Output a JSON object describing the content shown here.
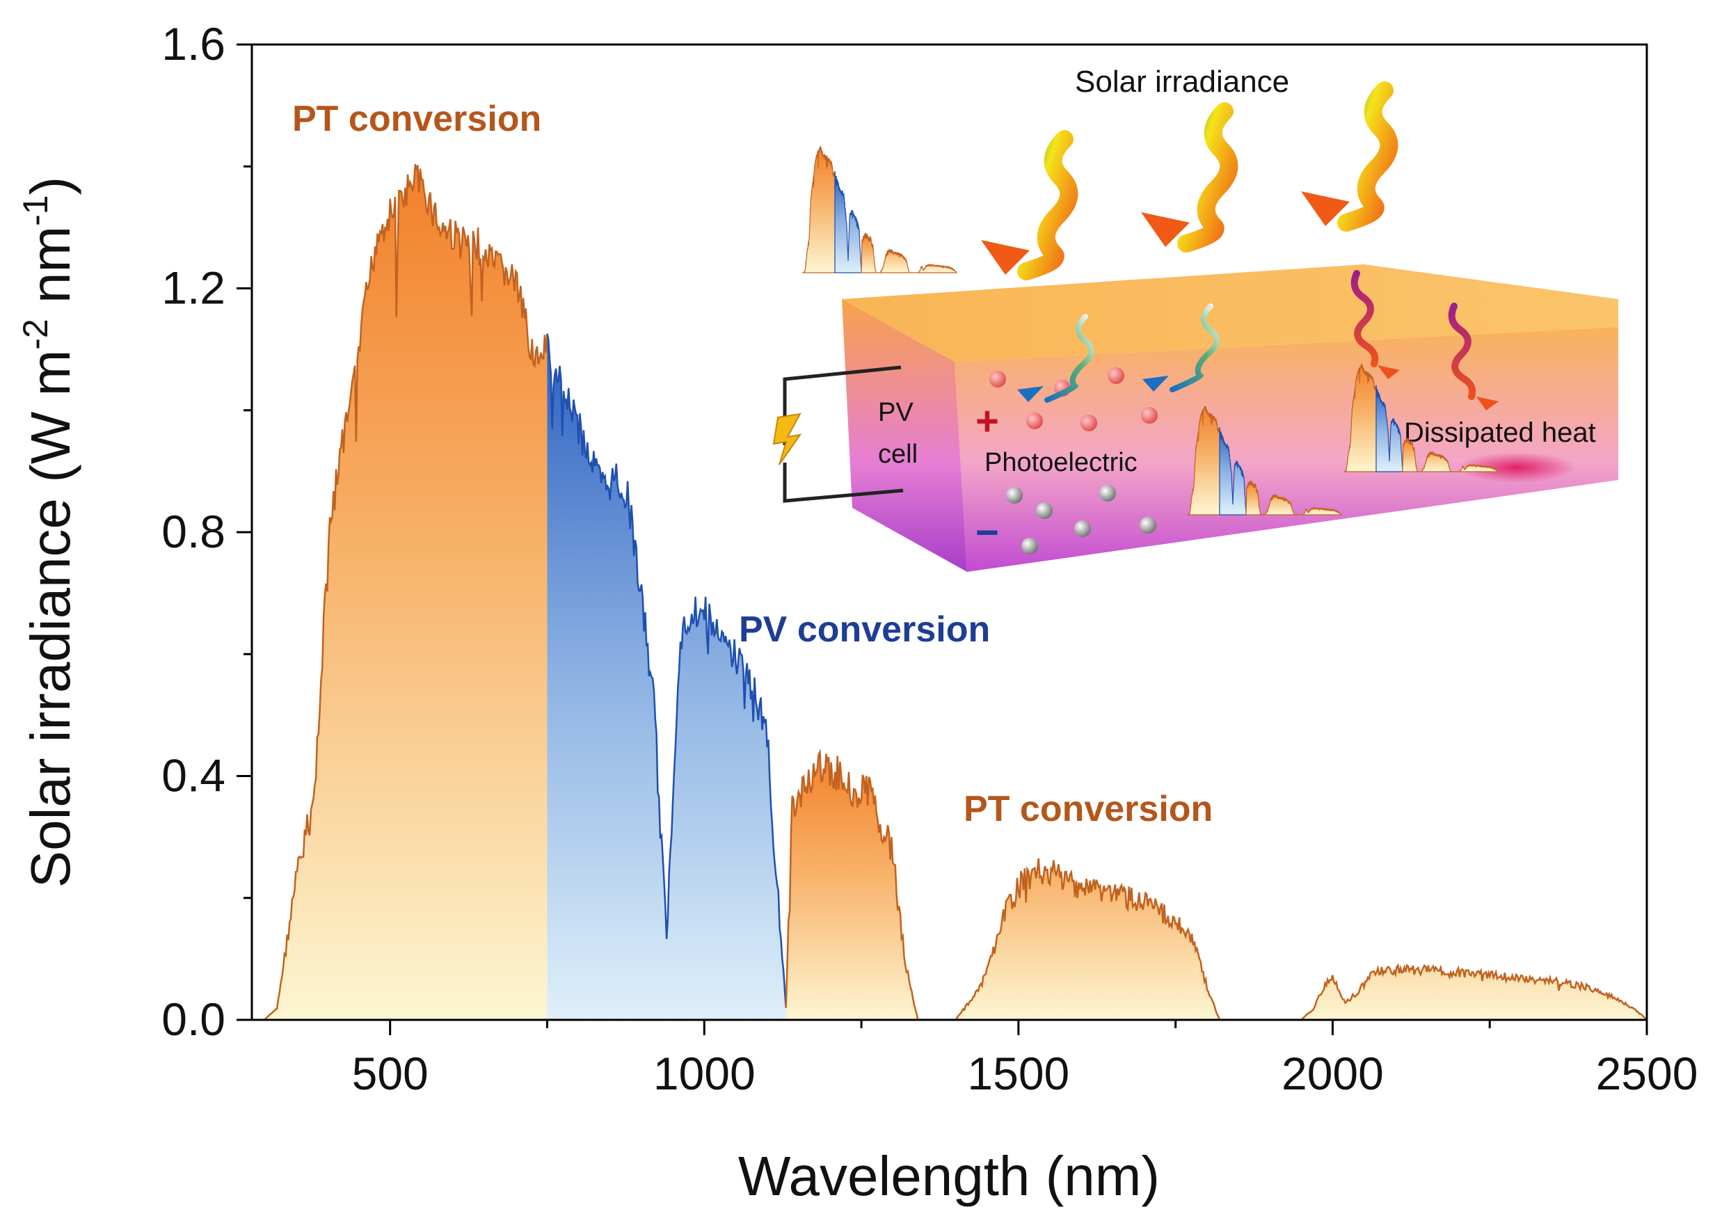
{
  "chart_data": {
    "type": "area",
    "title": "",
    "xlabel": "Wavelength (nm)",
    "ylabel_main": "Solar irradiance (W m",
    "ylabel_sup1": "-2",
    "ylabel_mid": " nm",
    "ylabel_sup2": "-1",
    "ylabel_end": ")",
    "xlim": [
      280,
      2500
    ],
    "ylim": [
      0,
      1.6
    ],
    "x_ticks": [
      500,
      1000,
      1500,
      2000,
      2500
    ],
    "x_tick_labels": [
      "500",
      "1000",
      "1500",
      "2000",
      "2500"
    ],
    "y_ticks": [
      0,
      0.4,
      0.8,
      1.2,
      1.6
    ],
    "y_tick_labels": [
      "0.0",
      "0.4",
      "0.8",
      "1.2",
      "1.6"
    ],
    "grid": false,
    "regions": [
      {
        "name": "PT conversion",
        "from": 280,
        "to": 750,
        "color": "#f28a2e"
      },
      {
        "name": "PV conversion",
        "from": 750,
        "to": 1130,
        "color": "#2a5fbf"
      },
      {
        "name": "PT conversion",
        "from": 1130,
        "to": 2500,
        "color": "#f28a2e"
      }
    ],
    "spectrum": {
      "x": [
        280,
        300,
        320,
        350,
        380,
        400,
        420,
        440,
        460,
        480,
        500,
        520,
        540,
        560,
        580,
        600,
        620,
        640,
        660,
        680,
        700,
        720,
        740,
        750,
        760,
        780,
        800,
        820,
        840,
        860,
        880,
        900,
        920,
        940,
        960,
        980,
        1000,
        1020,
        1040,
        1060,
        1080,
        1100,
        1120,
        1130,
        1140,
        1160,
        1180,
        1200,
        1220,
        1240,
        1260,
        1280,
        1300,
        1320,
        1340,
        1350,
        1360,
        1380,
        1400,
        1420,
        1440,
        1460,
        1480,
        1500,
        1520,
        1540,
        1560,
        1580,
        1600,
        1650,
        1700,
        1750,
        1780,
        1800,
        1820,
        1850,
        1900,
        1950,
        1970,
        1990,
        2000,
        2020,
        2040,
        2060,
        2080,
        2100,
        2150,
        2200,
        2250,
        2300,
        2350,
        2400,
        2450,
        2480,
        2500
      ],
      "y": [
        0.0,
        0.0,
        0.02,
        0.25,
        0.4,
        0.8,
        0.95,
        1.05,
        1.2,
        1.32,
        1.35,
        1.38,
        1.41,
        1.38,
        1.33,
        1.32,
        1.3,
        1.3,
        1.27,
        1.26,
        1.24,
        1.15,
        1.1,
        1.14,
        1.09,
        1.07,
        1.0,
        0.95,
        0.9,
        0.92,
        0.88,
        0.72,
        0.55,
        0.15,
        0.65,
        0.7,
        0.7,
        0.66,
        0.64,
        0.61,
        0.57,
        0.5,
        0.18,
        0.02,
        0.38,
        0.42,
        0.44,
        0.44,
        0.43,
        0.4,
        0.41,
        0.36,
        0.3,
        0.1,
        0.0,
        0.0,
        0.0,
        0.0,
        0.0,
        0.03,
        0.06,
        0.12,
        0.2,
        0.24,
        0.26,
        0.27,
        0.26,
        0.25,
        0.24,
        0.23,
        0.21,
        0.18,
        0.14,
        0.06,
        0.0,
        0.0,
        0.0,
        0.0,
        0.02,
        0.07,
        0.08,
        0.03,
        0.05,
        0.08,
        0.09,
        0.09,
        0.09,
        0.085,
        0.08,
        0.075,
        0.07,
        0.06,
        0.04,
        0.02,
        0.0
      ]
    },
    "annotations": [
      {
        "text": "PT conversion",
        "color": "#b5561a"
      },
      {
        "text": "PV conversion",
        "color": "#1e3d95"
      },
      {
        "text": "PT conversion",
        "color": "#b5561a"
      }
    ]
  },
  "inset": {
    "solar_label": "Solar irradiance",
    "pv_label_1": "PV",
    "pv_label_2": "cell",
    "plus": "+",
    "minus": "−",
    "photoelectric": "Photoelectric",
    "heat_label": "Dissipated heat"
  },
  "colors": {
    "orange": "#f28a2e",
    "blue": "#2a5fbf",
    "pt_text": "#b5561a",
    "pv_text": "#1e3d95"
  }
}
